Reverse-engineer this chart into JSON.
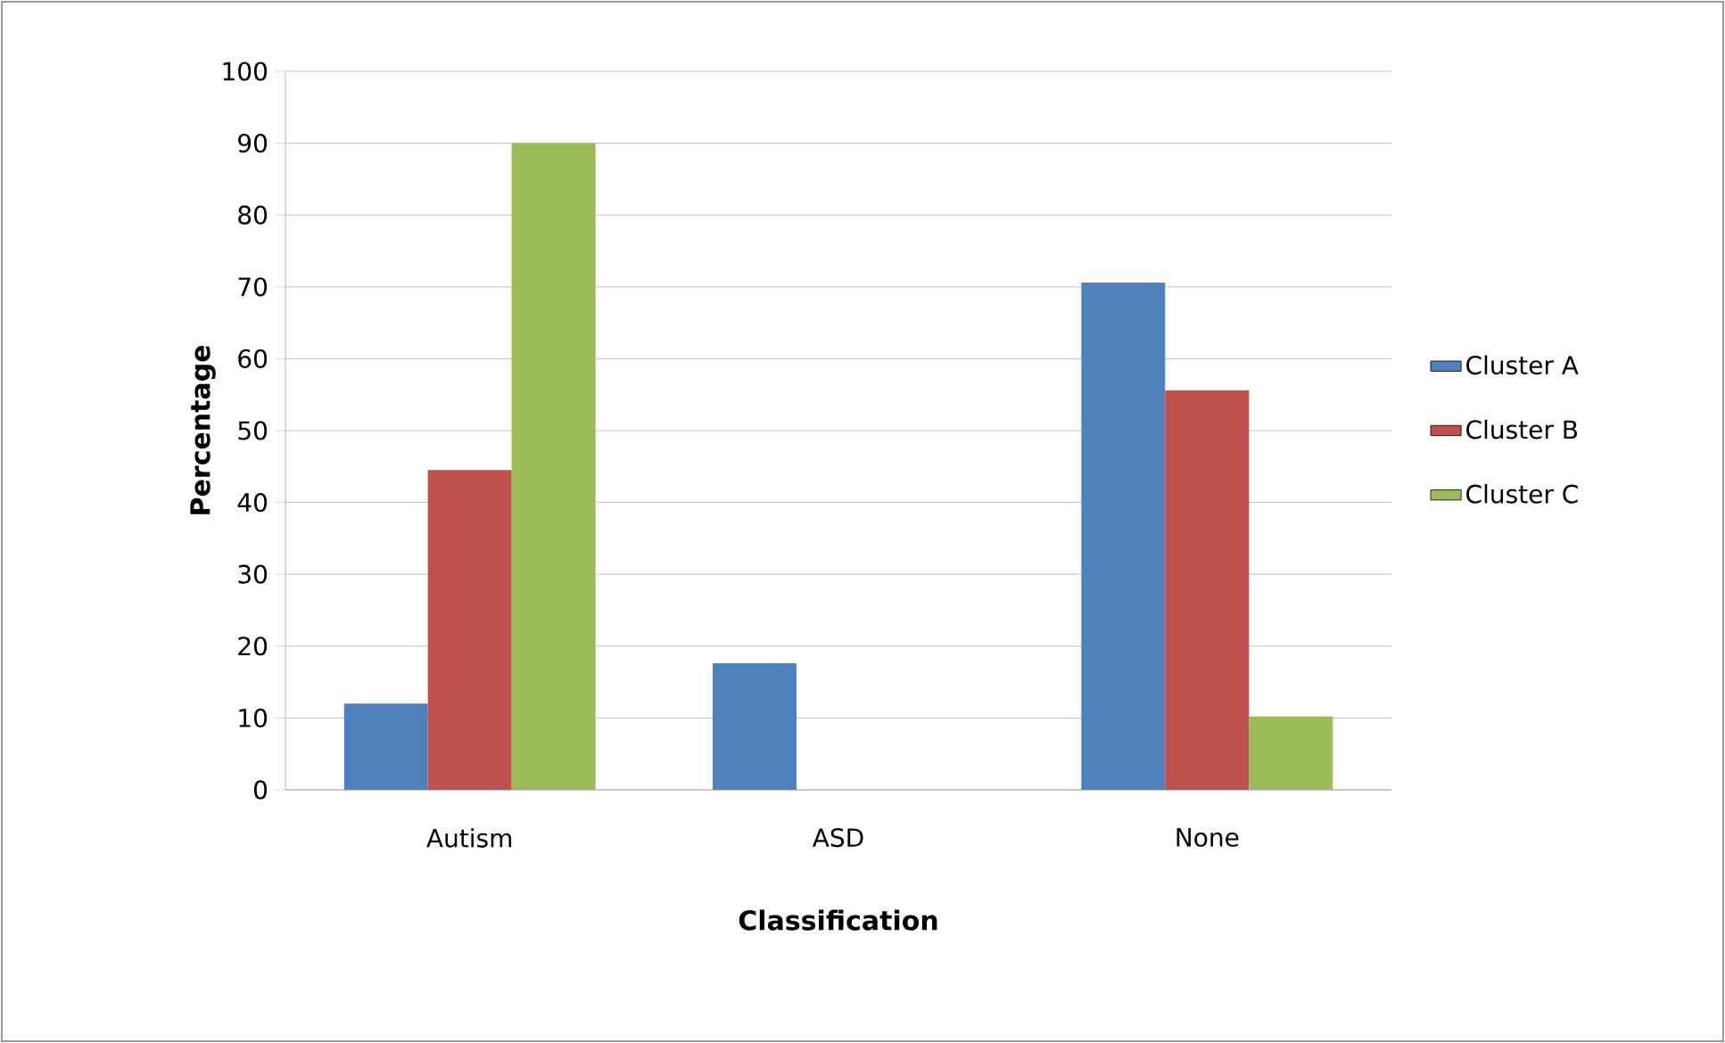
{
  "chart_data": {
    "type": "bar",
    "xlabel": "Classification",
    "ylabel": "Percentage",
    "categories": [
      "Autism",
      "ASD",
      "None"
    ],
    "series": [
      {
        "name": "Cluster A",
        "color": "#4f81bd",
        "values": [
          12,
          17.6,
          70.6
        ]
      },
      {
        "name": "Cluster B",
        "color": "#c0504d",
        "values": [
          44.5,
          0,
          55.6
        ]
      },
      {
        "name": "Cluster C",
        "color": "#9bbb59",
        "values": [
          90,
          0,
          10.2
        ]
      }
    ],
    "ylim": [
      0,
      100
    ],
    "yticks": [
      0,
      10,
      20,
      30,
      40,
      50,
      60,
      70,
      80,
      90,
      100
    ],
    "grid": "y",
    "legend": "right"
  }
}
